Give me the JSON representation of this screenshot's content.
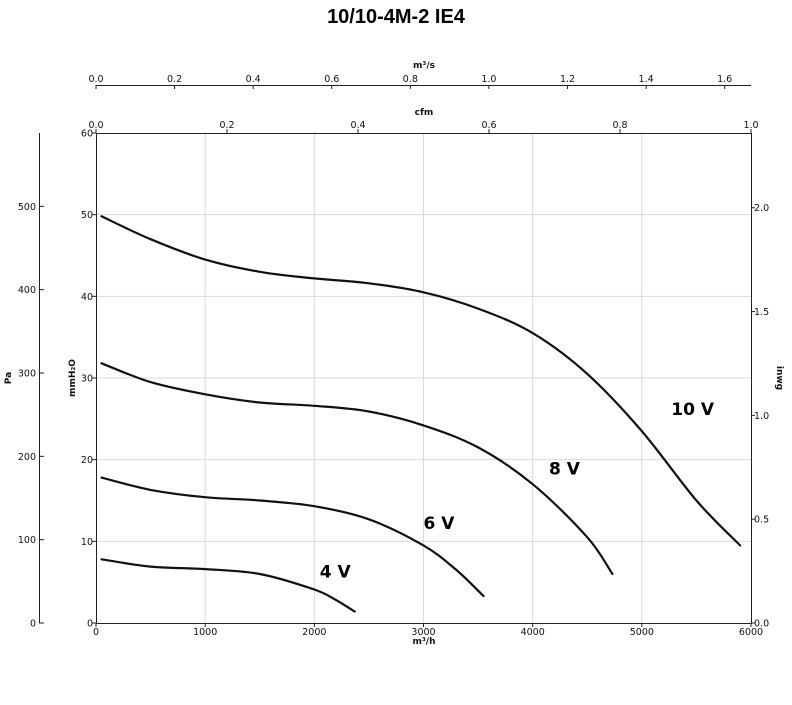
{
  "chart_data": {
    "type": "line",
    "title": "10/10-4M-2 IE4",
    "axes": {
      "bottom": {
        "label": "m³/h",
        "lim": [
          0,
          6000
        ],
        "ticks": [
          "0",
          "1000",
          "2000",
          "3000",
          "4000",
          "5000",
          "6000"
        ]
      },
      "left": {
        "label": "mmH₂O",
        "lim": [
          0,
          60
        ],
        "ticks": [
          "0",
          "10",
          "20",
          "30",
          "40",
          "50",
          "60"
        ]
      },
      "far_left": {
        "label": "Pa",
        "ticks": [
          "0",
          "100",
          "200",
          "300",
          "400",
          "500"
        ]
      },
      "right": {
        "label": "inwg",
        "ticks": [
          "0.0",
          "0.5",
          "1.0",
          "1.5",
          "2.0"
        ]
      },
      "top_inner": {
        "label": "cfm",
        "ticks": [
          "0.0",
          "0.2",
          "0.4",
          "0.6",
          "0.8",
          "1.0"
        ]
      },
      "top_outer": {
        "label": "m³/s",
        "ticks": [
          "0.0",
          "0.2",
          "0.4",
          "0.6",
          "0.8",
          "1.0",
          "1.2",
          "1.4",
          "1.6"
        ]
      }
    },
    "grid": true,
    "series": [
      {
        "name": "10 V",
        "x": [
          50,
          500,
          1000,
          1500,
          2000,
          2500,
          3000,
          3500,
          4000,
          4500,
          5000,
          5500,
          5900
        ],
        "y": [
          49.8,
          47.0,
          44.5,
          43.0,
          42.2,
          41.6,
          40.5,
          38.5,
          35.5,
          30.5,
          23.5,
          15.0,
          9.5
        ]
      },
      {
        "name": "8 V",
        "x": [
          50,
          500,
          1000,
          1500,
          2000,
          2500,
          3000,
          3500,
          4000,
          4500,
          4730
        ],
        "y": [
          31.8,
          29.5,
          28.0,
          27.0,
          26.6,
          25.9,
          24.2,
          21.5,
          17.0,
          10.5,
          6.0
        ]
      },
      {
        "name": "6 V",
        "x": [
          50,
          500,
          1000,
          1500,
          2000,
          2500,
          3000,
          3300,
          3550
        ],
        "y": [
          17.8,
          16.3,
          15.4,
          15.0,
          14.3,
          12.7,
          9.5,
          6.5,
          3.3
        ]
      },
      {
        "name": "4 V",
        "x": [
          50,
          500,
          1000,
          1500,
          2000,
          2200,
          2370
        ],
        "y": [
          7.8,
          6.9,
          6.6,
          6.0,
          4.1,
          2.8,
          1.4
        ]
      }
    ]
  }
}
